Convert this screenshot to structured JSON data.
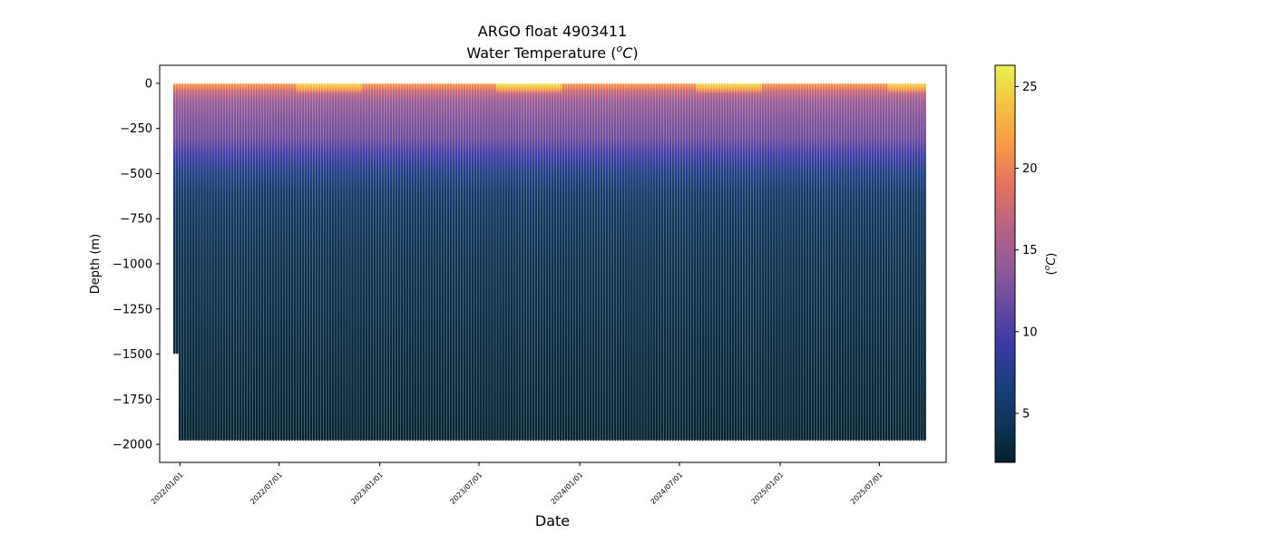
{
  "chart_data": {
    "type": "scatter",
    "title": "ARGO float 4903411",
    "subtitle": "Water Temperature (",
    "subtitle_sup": "o",
    "subtitle_unit": "C",
    "subtitle_close": ")",
    "xlabel": "Date",
    "ylabel": "Depth (m)",
    "colorbar_label_open": "(",
    "colorbar_label_sup": "o",
    "colorbar_label_unit": "C",
    "colorbar_label_close": ")",
    "colormap": "thermal",
    "colormap_stops": [
      "#04202c",
      "#0f3558",
      "#1c3f80",
      "#3b3aa5",
      "#6a4a9e",
      "#945b97",
      "#bb6383",
      "#e3735f",
      "#f89a47",
      "#f5c142",
      "#e8f250"
    ],
    "xlim": [
      "2021-11-25",
      "2025-10-31"
    ],
    "ylim": [
      -2100,
      100
    ],
    "x_ticks": [
      "2022/01/01",
      "2022/07/01",
      "2023/01/01",
      "2023/07/01",
      "2024/01/01",
      "2024/07/01",
      "2025/01/01",
      "2025/07/01"
    ],
    "x_tick_dates": [
      "2022-01-01",
      "2022-07-01",
      "2023-01-01",
      "2023-07-01",
      "2024-01-01",
      "2024-07-01",
      "2025-01-01",
      "2025-07-01"
    ],
    "y_ticks": [
      0,
      -250,
      -500,
      -750,
      -1000,
      -1250,
      -1500,
      -1750,
      -2000
    ],
    "colorbar_range": [
      2,
      26.3
    ],
    "colorbar_ticks": [
      5,
      10,
      15,
      20,
      25
    ],
    "first_profile_date": "2021-12-22",
    "last_profile_date": "2025-09-26",
    "profile_interval_days": 5,
    "profile_max_depths": [
      {
        "date": "2021-12-22",
        "max_depth": -1500
      },
      {
        "date": "2021-12-27",
        "max_depth": -1500
      },
      {
        "date": "2022-01-01",
        "max_depth": -1980
      },
      {
        "date": "2025-09-26",
        "max_depth": -1980
      }
    ],
    "temperature_profile": [
      {
        "depth": 0,
        "temperature": 22
      },
      {
        "depth": -50,
        "temperature": 17
      },
      {
        "depth": -100,
        "temperature": 14.5
      },
      {
        "depth": -200,
        "temperature": 13
      },
      {
        "depth": -300,
        "temperature": 12
      },
      {
        "depth": -400,
        "temperature": 9.5
      },
      {
        "depth": -500,
        "temperature": 7
      },
      {
        "depth": -600,
        "temperature": 5.5
      },
      {
        "depth": -750,
        "temperature": 4.6
      },
      {
        "depth": -1000,
        "temperature": 3.9
      },
      {
        "depth": -1500,
        "temperature": 3.0
      },
      {
        "depth": -2000,
        "temperature": 2.4
      }
    ],
    "warm_surface_periods": [
      {
        "start": "2022-08-01",
        "end": "2022-11-30",
        "surface_temperature": 25
      },
      {
        "start": "2023-08-01",
        "end": "2023-11-30",
        "surface_temperature": 26
      },
      {
        "start": "2024-08-01",
        "end": "2024-11-30",
        "surface_temperature": 25.5
      },
      {
        "start": "2025-07-15",
        "end": "2025-09-30",
        "surface_temperature": 25
      }
    ],
    "grid": false,
    "legend": "none"
  }
}
